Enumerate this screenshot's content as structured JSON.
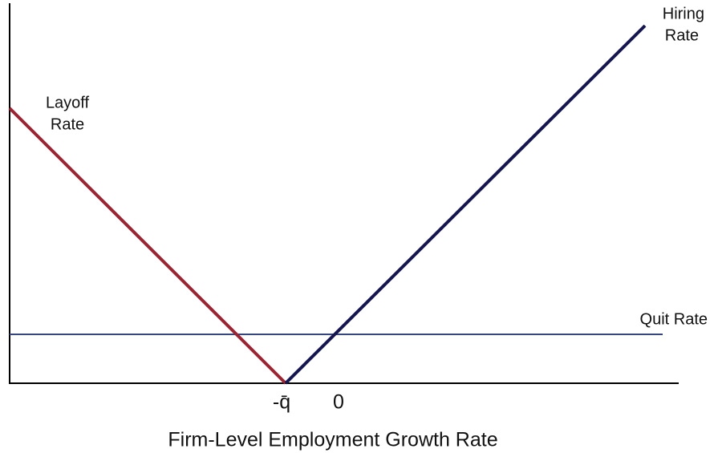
{
  "axis_title": "Firm-Level Employment Growth Rate",
  "x_labels": [
    "-q̄",
    "0"
  ],
  "curves": {
    "layoff": [
      "Layoff",
      "Rate"
    ],
    "hiring": [
      "Hiring",
      "Rate"
    ],
    "quit": [
      "Quit Rate"
    ]
  }
}
